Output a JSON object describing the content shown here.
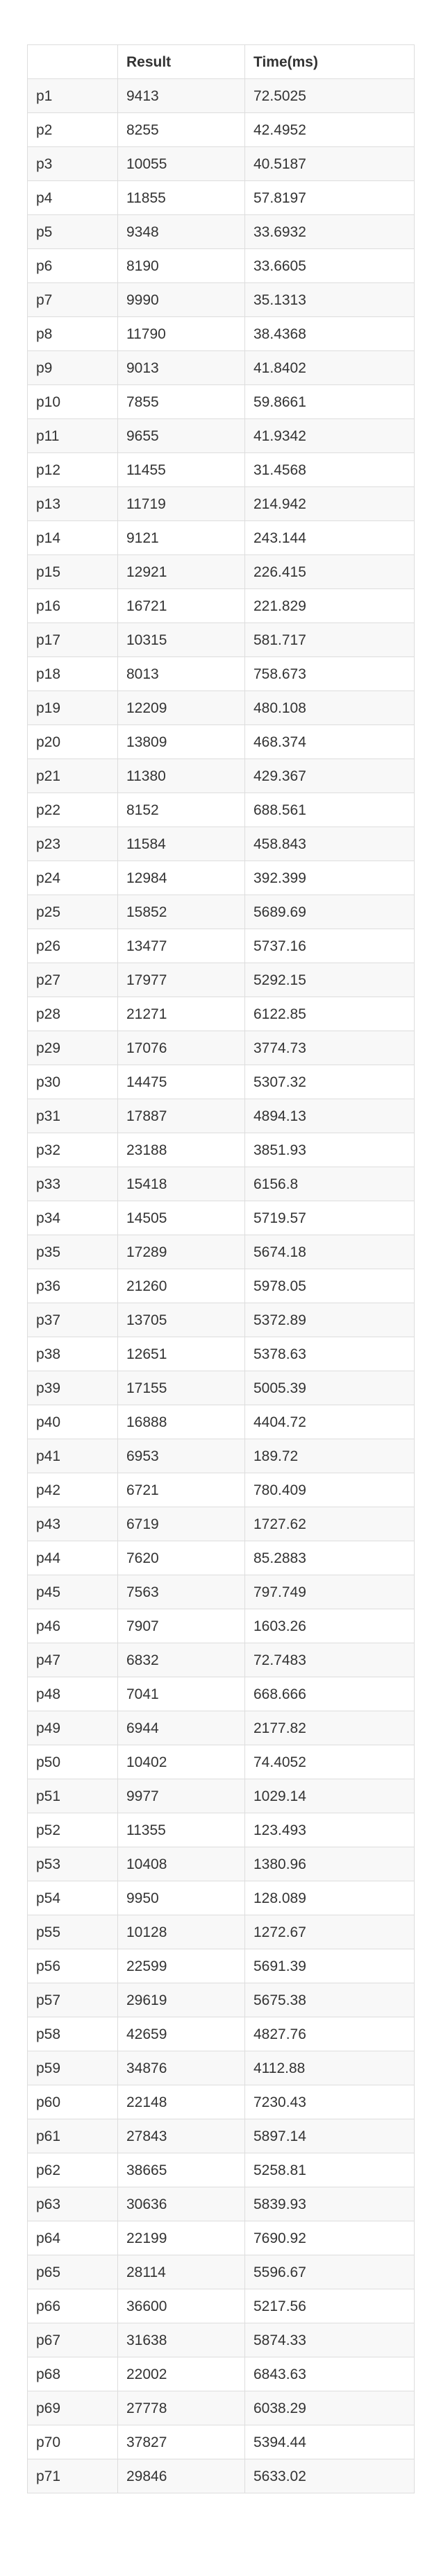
{
  "table": {
    "headers": [
      "",
      "Result",
      "Time(ms)"
    ],
    "rows": [
      [
        "p1",
        "9413",
        "72.5025"
      ],
      [
        "p2",
        "8255",
        "42.4952"
      ],
      [
        "p3",
        "10055",
        "40.5187"
      ],
      [
        "p4",
        "11855",
        "57.8197"
      ],
      [
        "p5",
        "9348",
        "33.6932"
      ],
      [
        "p6",
        "8190",
        "33.6605"
      ],
      [
        "p7",
        "9990",
        "35.1313"
      ],
      [
        "p8",
        "11790",
        "38.4368"
      ],
      [
        "p9",
        "9013",
        "41.8402"
      ],
      [
        "p10",
        "7855",
        "59.8661"
      ],
      [
        "p11",
        "9655",
        "41.9342"
      ],
      [
        "p12",
        "11455",
        "31.4568"
      ],
      [
        "p13",
        "11719",
        "214.942"
      ],
      [
        "p14",
        "9121",
        "243.144"
      ],
      [
        "p15",
        "12921",
        "226.415"
      ],
      [
        "p16",
        "16721",
        "221.829"
      ],
      [
        "p17",
        "10315",
        "581.717"
      ],
      [
        "p18",
        "8013",
        "758.673"
      ],
      [
        "p19",
        "12209",
        "480.108"
      ],
      [
        "p20",
        "13809",
        "468.374"
      ],
      [
        "p21",
        "11380",
        "429.367"
      ],
      [
        "p22",
        "8152",
        "688.561"
      ],
      [
        "p23",
        "11584",
        "458.843"
      ],
      [
        "p24",
        "12984",
        "392.399"
      ],
      [
        "p25",
        "15852",
        "5689.69"
      ],
      [
        "p26",
        "13477",
        "5737.16"
      ],
      [
        "p27",
        "17977",
        "5292.15"
      ],
      [
        "p28",
        "21271",
        "6122.85"
      ],
      [
        "p29",
        "17076",
        "3774.73"
      ],
      [
        "p30",
        "14475",
        "5307.32"
      ],
      [
        "p31",
        "17887",
        "4894.13"
      ],
      [
        "p32",
        "23188",
        "3851.93"
      ],
      [
        "p33",
        "15418",
        "6156.8"
      ],
      [
        "p34",
        "14505",
        "5719.57"
      ],
      [
        "p35",
        "17289",
        "5674.18"
      ],
      [
        "p36",
        "21260",
        "5978.05"
      ],
      [
        "p37",
        "13705",
        "5372.89"
      ],
      [
        "p38",
        "12651",
        "5378.63"
      ],
      [
        "p39",
        "17155",
        "5005.39"
      ],
      [
        "p40",
        "16888",
        "4404.72"
      ],
      [
        "p41",
        "6953",
        "189.72"
      ],
      [
        "p42",
        "6721",
        "780.409"
      ],
      [
        "p43",
        "6719",
        "1727.62"
      ],
      [
        "p44",
        "7620",
        "85.2883"
      ],
      [
        "p45",
        "7563",
        "797.749"
      ],
      [
        "p46",
        "7907",
        "1603.26"
      ],
      [
        "p47",
        "6832",
        "72.7483"
      ],
      [
        "p48",
        "7041",
        "668.666"
      ],
      [
        "p49",
        "6944",
        "2177.82"
      ],
      [
        "p50",
        "10402",
        "74.4052"
      ],
      [
        "p51",
        "9977",
        "1029.14"
      ],
      [
        "p52",
        "11355",
        "123.493"
      ],
      [
        "p53",
        "10408",
        "1380.96"
      ],
      [
        "p54",
        "9950",
        "128.089"
      ],
      [
        "p55",
        "10128",
        "1272.67"
      ],
      [
        "p56",
        "22599",
        "5691.39"
      ],
      [
        "p57",
        "29619",
        "5675.38"
      ],
      [
        "p58",
        "42659",
        "4827.76"
      ],
      [
        "p59",
        "34876",
        "4112.88"
      ],
      [
        "p60",
        "22148",
        "7230.43"
      ],
      [
        "p61",
        "27843",
        "5897.14"
      ],
      [
        "p62",
        "38665",
        "5258.81"
      ],
      [
        "p63",
        "30636",
        "5839.93"
      ],
      [
        "p64",
        "22199",
        "7690.92"
      ],
      [
        "p65",
        "28114",
        "5596.67"
      ],
      [
        "p66",
        "36600",
        "5217.56"
      ],
      [
        "p67",
        "31638",
        "5874.33"
      ],
      [
        "p68",
        "22002",
        "6843.63"
      ],
      [
        "p69",
        "27778",
        "6038.29"
      ],
      [
        "p70",
        "37827",
        "5394.44"
      ],
      [
        "p71",
        "29846",
        "5633.02"
      ]
    ]
  }
}
